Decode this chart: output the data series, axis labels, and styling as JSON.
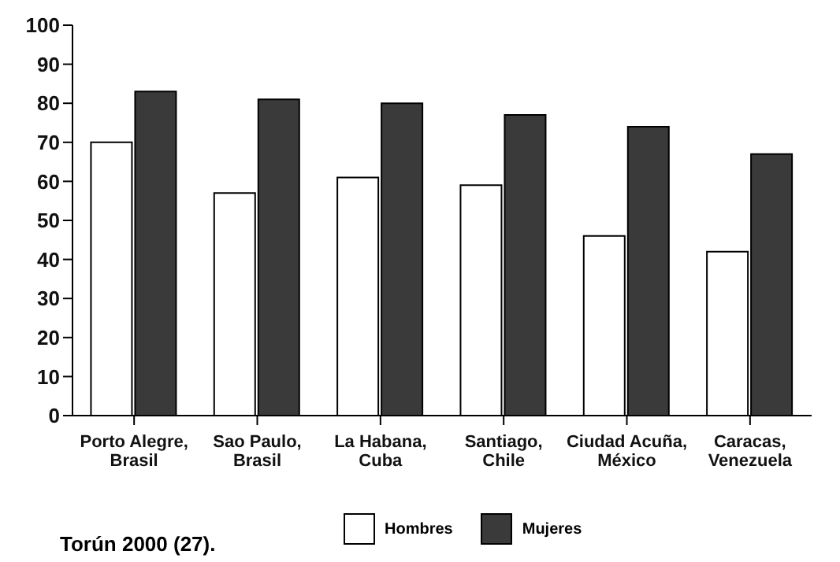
{
  "chart_data": {
    "type": "bar",
    "categories": [
      "Porto Alegre, Brasil",
      "Sao Paulo, Brasil",
      "La Habana, Cuba",
      "Santiago, Chile",
      "Ciudad Acuña, México",
      "Caracas, Venezuela"
    ],
    "series": [
      {
        "name": "Hombres",
        "color": "#ffffff",
        "values": [
          70,
          57,
          61,
          59,
          46,
          42
        ]
      },
      {
        "name": "Mujeres",
        "color": "#3a3a3a",
        "values": [
          83,
          81,
          80,
          77,
          74,
          67
        ]
      }
    ],
    "ylim": [
      0,
      100
    ],
    "yticks": [
      0,
      10,
      20,
      30,
      40,
      50,
      60,
      70,
      80,
      90,
      100
    ],
    "grid": false,
    "legend": "bottom",
    "annotations": [
      "Torún 2000 (27)."
    ]
  }
}
